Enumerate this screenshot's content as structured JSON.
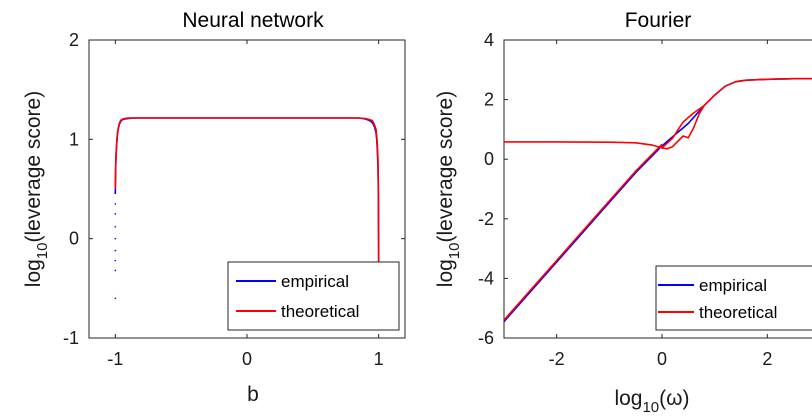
{
  "chart_data": [
    {
      "type": "line",
      "title": "Neural network",
      "xlabel": "b",
      "ylabel": {
        "prefix": "log",
        "sub": "10",
        "suffix": "(leverage score)"
      },
      "xlim": [
        -1.2,
        1.2
      ],
      "ylim": [
        -1,
        2
      ],
      "xticks": [
        -1,
        0,
        1
      ],
      "yticks": [
        -1,
        0,
        1,
        2
      ],
      "xtick_labels": [
        "-1",
        "0",
        "1"
      ],
      "ytick_labels": [
        "-1",
        "0",
        "1",
        "2"
      ],
      "grid": false,
      "legend_position": "bottom-right",
      "series": [
        {
          "name": "empirical",
          "color": "#0000ff",
          "x": [
            -1.0,
            -0.998,
            -0.995,
            -0.99,
            -0.985,
            -0.98,
            -0.97,
            -0.96,
            -0.95,
            -0.93,
            -0.9,
            -0.85,
            -0.8,
            -0.5,
            0,
            0.5,
            0.8,
            0.85,
            0.9,
            0.93,
            0.95,
            0.96,
            0.97,
            0.98,
            0.985,
            0.99,
            0.995,
            0.998,
            1.0
          ],
          "y": [
            0.45,
            0.68,
            0.82,
            0.95,
            1.03,
            1.09,
            1.15,
            1.18,
            1.195,
            1.205,
            1.21,
            1.215,
            1.215,
            1.215,
            1.215,
            1.215,
            1.215,
            1.215,
            1.205,
            1.19,
            1.17,
            1.15,
            1.12,
            1.07,
            1.0,
            0.9,
            0.72,
            0.4,
            -0.25
          ]
        },
        {
          "name": "theoretical",
          "color": "#ff0000",
          "x": [
            -1.0,
            -0.998,
            -0.995,
            -0.99,
            -0.985,
            -0.98,
            -0.97,
            -0.96,
            -0.95,
            -0.93,
            -0.9,
            -0.85,
            -0.8,
            -0.5,
            0,
            0.5,
            0.8,
            0.85,
            0.9,
            0.93,
            0.95,
            0.96,
            0.97,
            0.98,
            0.985,
            0.99,
            0.995,
            0.998,
            1.0
          ],
          "y": [
            0.5,
            0.7,
            0.84,
            0.97,
            1.05,
            1.1,
            1.16,
            1.19,
            1.2,
            1.21,
            1.215,
            1.215,
            1.215,
            1.215,
            1.215,
            1.215,
            1.215,
            1.215,
            1.21,
            1.2,
            1.19,
            1.17,
            1.14,
            1.1,
            1.04,
            0.95,
            0.8,
            0.5,
            -0.25
          ]
        }
      ],
      "scatter_tail": {
        "color": "#0000ff",
        "x": [
          -1.0,
          -1.0,
          -1.0,
          -1.0,
          -1.0,
          -1.0,
          -1.0,
          -1.0
        ],
        "y": [
          0.35,
          0.25,
          0.12,
          0.0,
          -0.12,
          -0.22,
          -0.32,
          -0.6
        ]
      }
    },
    {
      "type": "line",
      "title": "Fourier",
      "xlabel": {
        "prefix": "log",
        "sub": "10",
        "suffix": "(ω)"
      },
      "ylabel": {
        "prefix": "log",
        "sub": "10",
        "suffix": "(leverage score)"
      },
      "xlim": [
        -3,
        3
      ],
      "ylim": [
        -6,
        4
      ],
      "xticks": [
        -2,
        0,
        2
      ],
      "yticks": [
        -6,
        -4,
        -2,
        0,
        2,
        4
      ],
      "xtick_labels": [
        "-2",
        "0",
        "2"
      ],
      "ytick_labels": [
        "-6",
        "-4",
        "-2",
        "0",
        "2",
        "4"
      ],
      "grid": false,
      "legend_position": "bottom-right",
      "series": [
        {
          "name": "empirical",
          "color": "#0000ff",
          "x": [
            -3.0,
            -2.5,
            -2.0,
            -1.5,
            -1.0,
            -0.5,
            0.0,
            0.2,
            0.4,
            0.5,
            0.6,
            0.7,
            0.8,
            1.0,
            1.2,
            1.4,
            1.6,
            2.0,
            2.5,
            3.0
          ],
          "y": [
            -5.45,
            -4.45,
            -3.45,
            -2.45,
            -1.45,
            -0.45,
            0.45,
            0.75,
            1.05,
            1.2,
            1.4,
            1.6,
            1.8,
            2.15,
            2.45,
            2.6,
            2.65,
            2.68,
            2.7,
            2.7
          ]
        },
        {
          "name": "theoretical",
          "color": "#ff0000",
          "x": [
            -3.0,
            -2.0,
            -1.0,
            -0.5,
            -0.2,
            0.0,
            0.1,
            0.2,
            0.3,
            0.4,
            0.5,
            0.6,
            0.7,
            0.8,
            1.0,
            1.2,
            1.4,
            1.6,
            2.0,
            2.5,
            3.0
          ],
          "y": [
            0.58,
            0.58,
            0.57,
            0.55,
            0.48,
            0.38,
            0.35,
            0.42,
            0.6,
            0.78,
            0.72,
            1.05,
            1.5,
            1.8,
            2.15,
            2.45,
            2.6,
            2.65,
            2.68,
            2.7,
            2.7
          ]
        },
        {
          "name": "",
          "color": "#ff0000",
          "x": [
            0.0,
            0.2,
            0.4,
            0.6,
            0.8
          ],
          "y": [
            0.38,
            0.7,
            1.25,
            1.55,
            1.8
          ]
        },
        {
          "name": "",
          "color": "#ff0000",
          "x": [
            -3.0,
            -2.5,
            -2.0,
            -1.5,
            -1.0,
            -0.5,
            0.0
          ],
          "y": [
            -5.4,
            -4.4,
            -3.4,
            -2.4,
            -1.4,
            -0.4,
            0.5
          ]
        }
      ]
    }
  ]
}
